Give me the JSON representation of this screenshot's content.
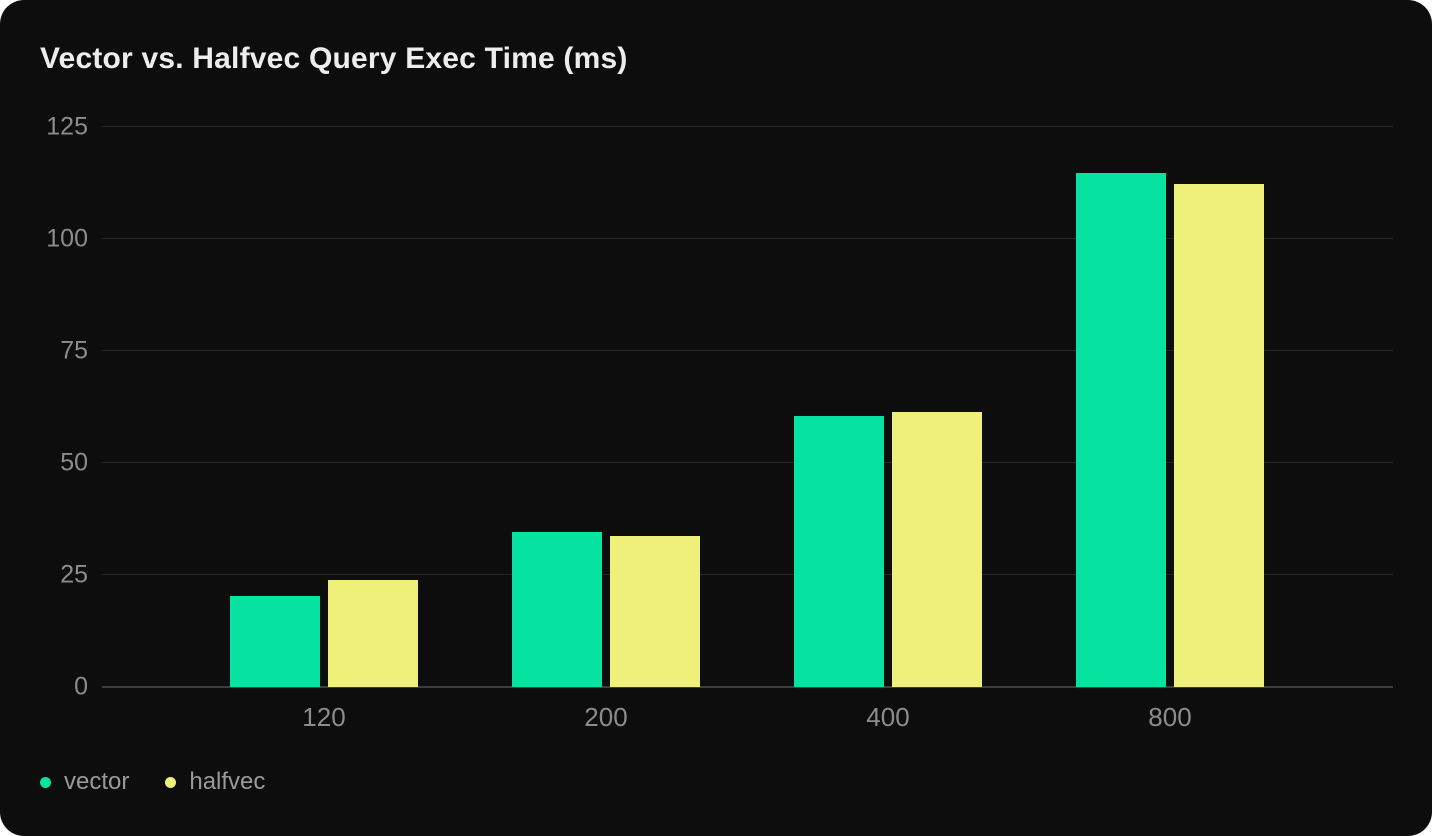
{
  "card": {
    "title": "Vector vs. Halfvec Query Exec Time (ms)"
  },
  "chart_data": {
    "type": "bar",
    "title": "Vector vs. Halfvec Query Exec Time (ms)",
    "categories": [
      "120",
      "200",
      "400",
      "800"
    ],
    "series": [
      {
        "name": "vector",
        "color": "#06e2a0",
        "values": [
          20.3,
          34.5,
          60.5,
          114.8
        ]
      },
      {
        "name": "halfvec",
        "color": "#eef07a",
        "values": [
          23.9,
          33.6,
          61.3,
          112.2
        ]
      }
    ],
    "ylim": [
      0,
      125
    ],
    "yticks": [
      0,
      25,
      50,
      75,
      100,
      125
    ],
    "xlabel": "",
    "ylabel": "",
    "grid": true,
    "legend_position": "bottom-left",
    "colors": {
      "background": "#0d0d0e",
      "page_background": "#ffffff",
      "gridline": "#262626",
      "axis_line": "#3e3e3e",
      "tick_label": "#8c8c8c",
      "legend_label": "#9a9a9a",
      "title": "#ededed"
    }
  }
}
